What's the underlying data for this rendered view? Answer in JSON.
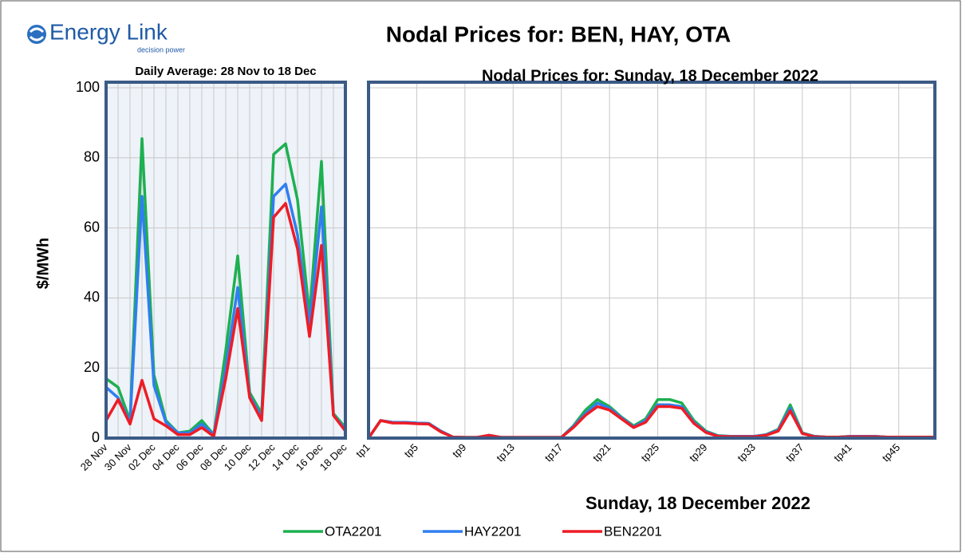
{
  "logo": {
    "name": "Energy Link",
    "tagline": "decision power"
  },
  "title": "Nodal Prices for:  BEN, HAY, OTA",
  "chart_data": [
    {
      "type": "line",
      "title": "Daily Average: 28 Nov to 18 Dec",
      "ylabel": "$/MWh",
      "categories": [
        "28 Nov",
        null,
        "30 Nov",
        null,
        "02 Dec",
        null,
        "04 Dec",
        null,
        "06 Dec",
        null,
        "08 Dec",
        null,
        "10 Dec",
        null,
        "12 Dec",
        null,
        "14 Dec",
        null,
        "16 Dec",
        null,
        "18 Dec"
      ],
      "ylim": [
        0,
        100
      ],
      "yticks": [
        0,
        20,
        40,
        60,
        80,
        100
      ],
      "grid": true,
      "series": [
        {
          "name": "OTA2201",
          "color": "#1db050",
          "values": [
            17,
            14.5,
            5,
            85.5,
            18,
            5,
            1.5,
            2,
            5,
            1,
            25,
            52,
            13,
            7,
            81,
            84,
            68,
            35,
            79,
            7,
            3
          ]
        },
        {
          "name": "HAY2201",
          "color": "#2f7ff0",
          "values": [
            14.5,
            11.5,
            4.5,
            69,
            15,
            4.5,
            1.5,
            1.5,
            4,
            1,
            20,
            43,
            12,
            6,
            69,
            72.5,
            58,
            32,
            66,
            6.5,
            2.5
          ]
        },
        {
          "name": "BEN2201",
          "color": "#ee1c25",
          "values": [
            5,
            11,
            4,
            16.5,
            5.5,
            3.5,
            1,
            1,
            3,
            0.5,
            17,
            37,
            11.5,
            5,
            63,
            67,
            54,
            29,
            55,
            6.5,
            2
          ]
        }
      ]
    },
    {
      "type": "line",
      "title": "Nodal Prices for: Sunday, 18 December 2022",
      "xlabel": "Sunday, 18 December 2022",
      "categories": [
        "tp1",
        null,
        null,
        null,
        "tp5",
        null,
        null,
        null,
        "tp9",
        null,
        null,
        null,
        "tp13",
        null,
        null,
        null,
        "tp17",
        null,
        null,
        null,
        "tp21",
        null,
        null,
        null,
        "tp25",
        null,
        null,
        null,
        "tp29",
        null,
        null,
        null,
        "tp33",
        null,
        null,
        null,
        "tp37",
        null,
        null,
        null,
        "tp41",
        null,
        null,
        null,
        "tp45",
        null,
        null,
        null
      ],
      "ylim": [
        0,
        100
      ],
      "yticks": [
        0,
        20,
        40,
        60,
        80,
        100
      ],
      "grid": true,
      "series": [
        {
          "color": "#1db050",
          "values": [
            0,
            5,
            4.5,
            4.5,
            4.3,
            4.2,
            2,
            0.3,
            0.2,
            0.2,
            0.8,
            0.2,
            0.2,
            0.2,
            0.2,
            0.2,
            0.2,
            3.5,
            8,
            11,
            9,
            6,
            3.5,
            5.5,
            11,
            11,
            10,
            5,
            2,
            0.7,
            0.5,
            0.5,
            0.5,
            1,
            2.5,
            9.5,
            1.5,
            0.5,
            0.3,
            0.3,
            0.5,
            0.5,
            0.5,
            0.3,
            0.3,
            0.3,
            0.3,
            0.3
          ]
        },
        {
          "color": "#2f7ff0",
          "values": [
            0,
            5,
            4.5,
            4.5,
            4.3,
            4.2,
            2,
            0.3,
            0.2,
            0.2,
            0.8,
            0.2,
            0.2,
            0.2,
            0.2,
            0.2,
            0.2,
            3.3,
            7,
            10,
            8.5,
            5.8,
            3.2,
            5,
            9.5,
            9.5,
            9,
            4.5,
            1.8,
            0.6,
            0.5,
            0.5,
            0.5,
            0.9,
            2.3,
            8.5,
            1.4,
            0.5,
            0.3,
            0.3,
            0.5,
            0.5,
            0.5,
            0.3,
            0.3,
            0.3,
            0.3,
            0.3
          ]
        },
        {
          "color": "#ee1c25",
          "values": [
            0,
            5,
            4.3,
            4.3,
            4.1,
            4,
            1.8,
            0.3,
            0.2,
            0.2,
            0.8,
            0.2,
            0.2,
            0.2,
            0.2,
            0.2,
            0.2,
            3,
            6.5,
            9,
            8,
            5.5,
            3,
            4.5,
            9,
            9,
            8.5,
            4.2,
            1.6,
            0.5,
            0.4,
            0.4,
            0.4,
            0.8,
            2,
            7.8,
            1.3,
            0.4,
            0.3,
            0.3,
            0.4,
            0.4,
            0.4,
            0.3,
            0.3,
            0.3,
            0.3,
            0.3
          ]
        }
      ]
    }
  ]
}
